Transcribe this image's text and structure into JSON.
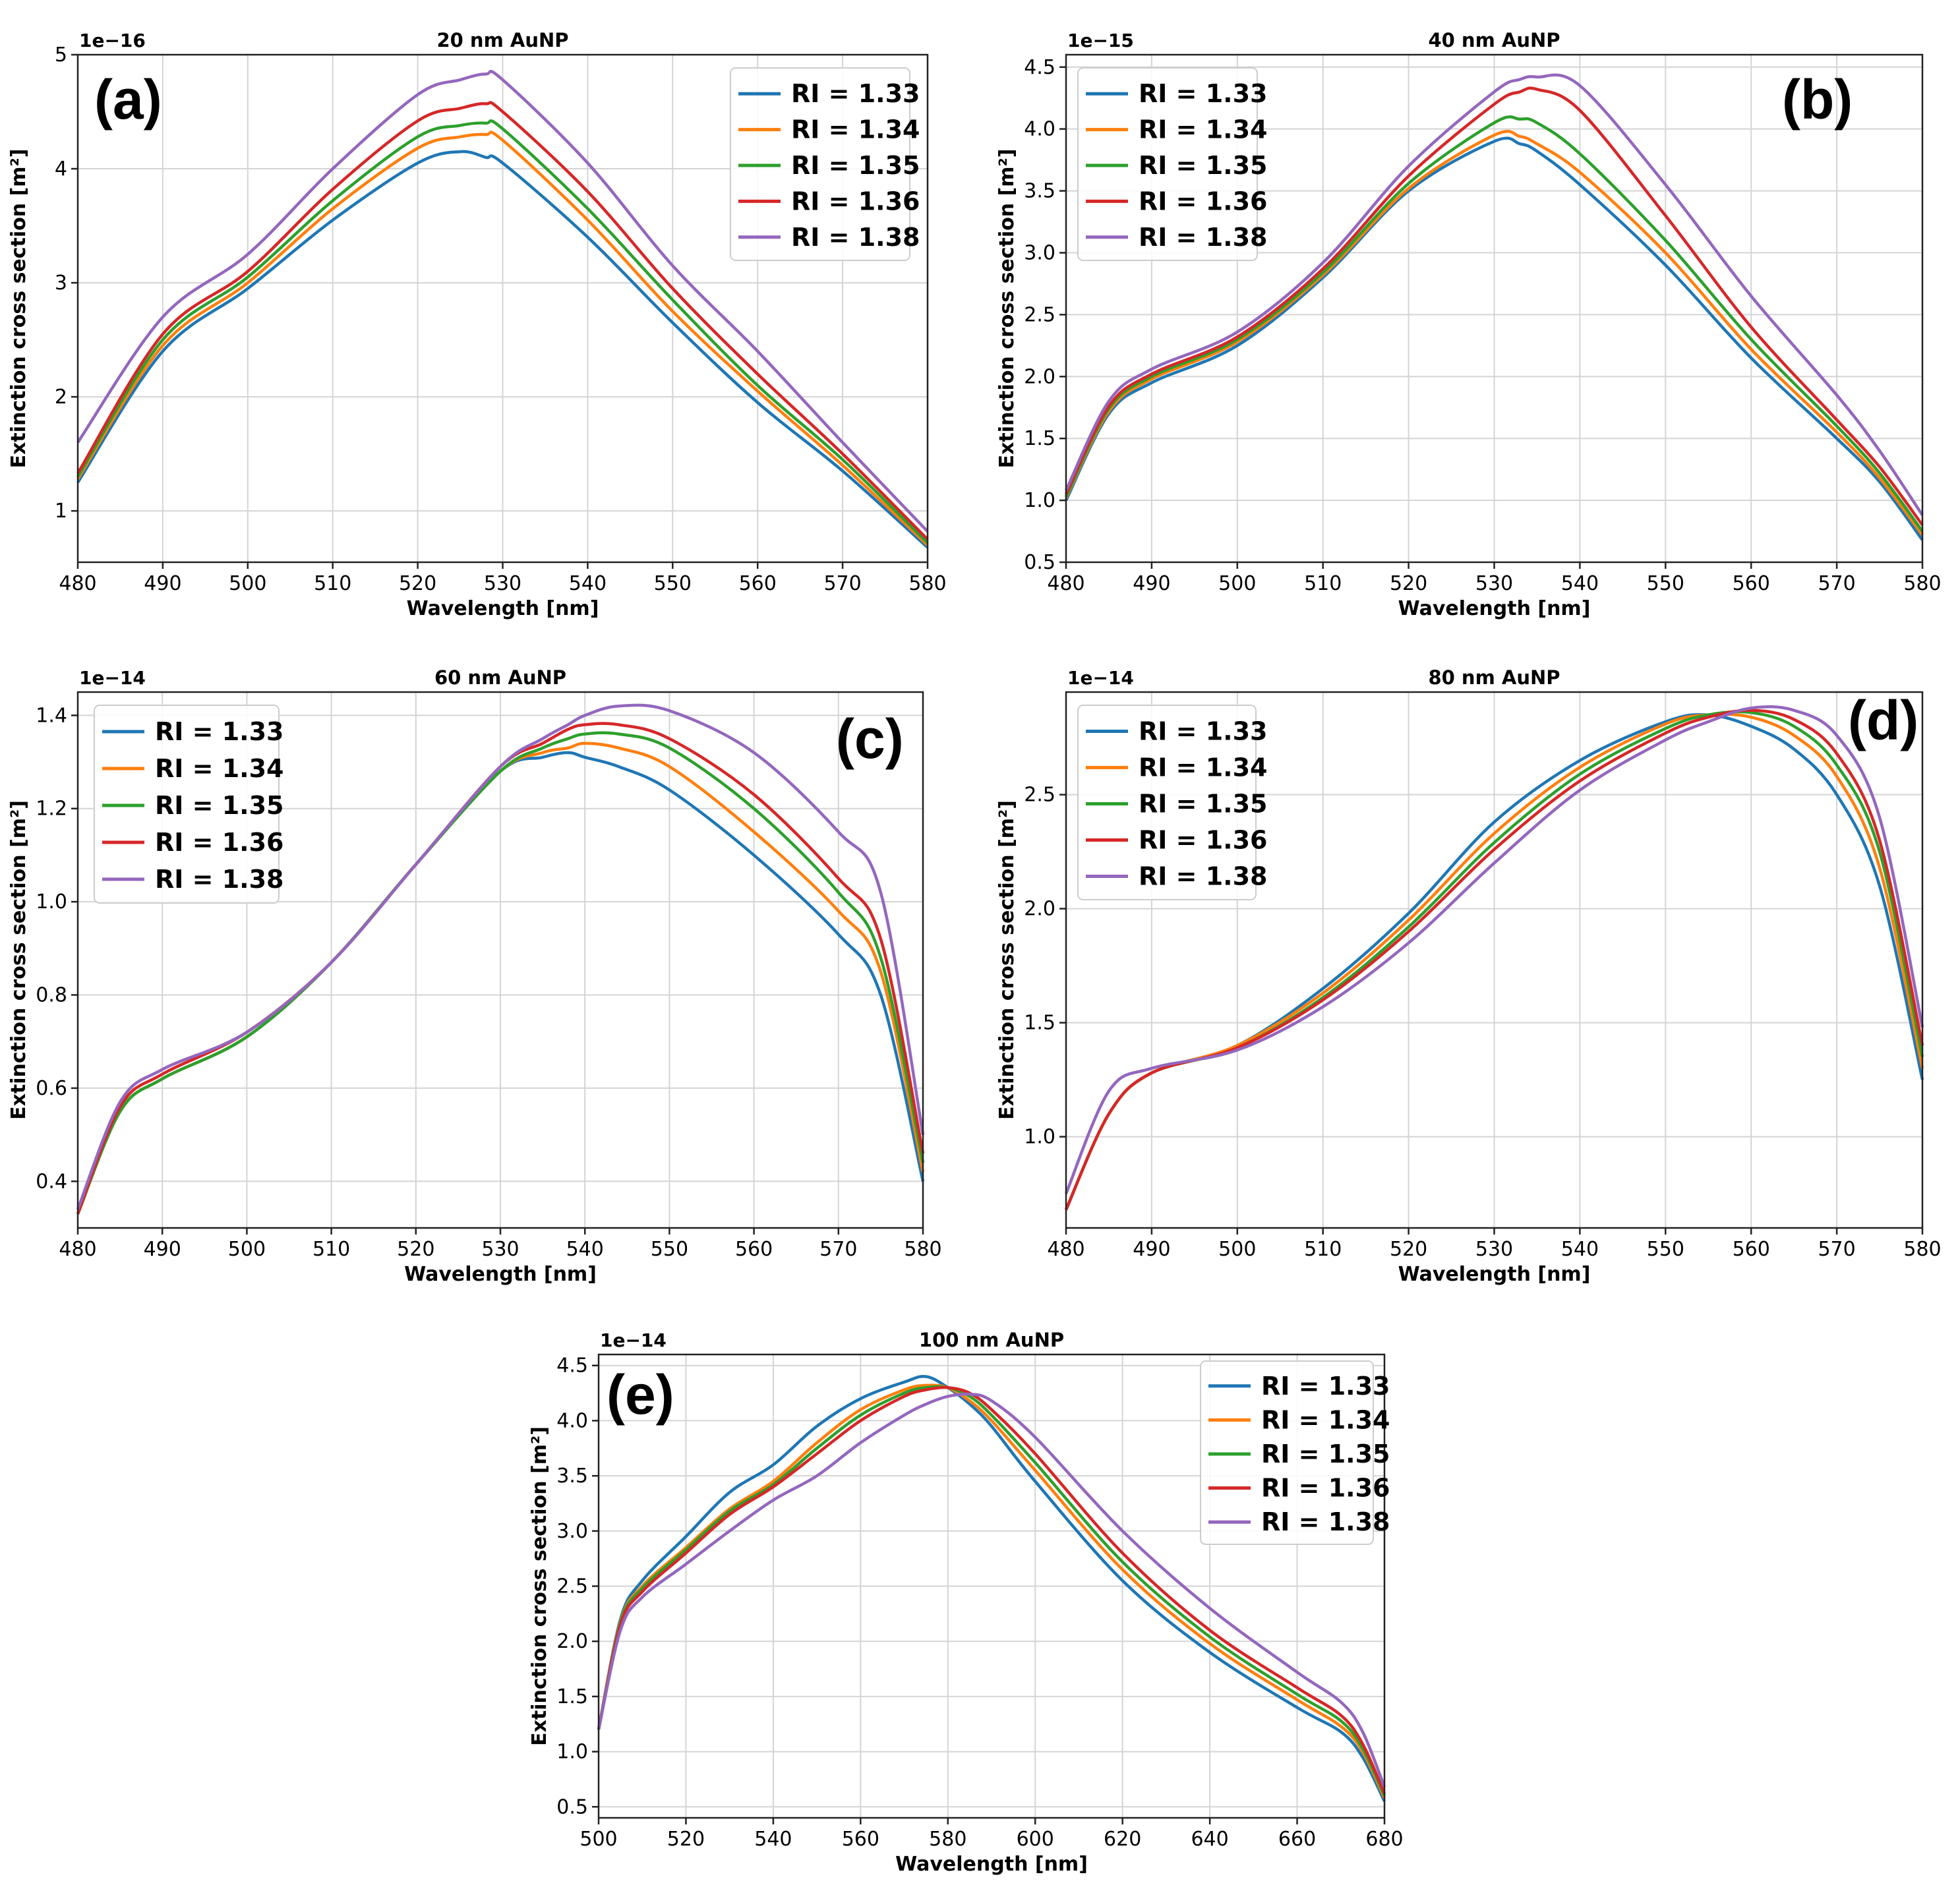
{
  "figure": {
    "legend_prefix": "RI = ",
    "series_colors": {
      "1.33": "#1f77b4",
      "1.34": "#ff7f0e",
      "1.35": "#2ca02c",
      "1.36": "#d62728",
      "1.38": "#9467bd"
    }
  },
  "chart_data": [
    {
      "type": "line",
      "panel_label": "(a)",
      "title": "20 nm AuNP",
      "xlabel": "Wavelength [nm]",
      "ylabel": "Extinction cross section [m²]",
      "offset_text": "1e−16",
      "xlim": [
        480,
        580
      ],
      "ylim": [
        0.55,
        5.0
      ],
      "xticks": [
        480,
        490,
        500,
        510,
        520,
        530,
        540,
        550,
        560,
        570,
        580
      ],
      "yticks": [
        1,
        2,
        3,
        4,
        5
      ],
      "ytick_labels": [
        "1",
        "2",
        "3",
        "4",
        "5"
      ],
      "legend_position": "top-right",
      "x": [
        480,
        490,
        500,
        510,
        520,
        525,
        528,
        530,
        540,
        550,
        560,
        570,
        580
      ],
      "series": [
        {
          "name": "RI = 1.33",
          "ri": "1.33",
          "values": [
            1.25,
            2.4,
            2.95,
            3.55,
            4.05,
            4.15,
            4.1,
            4.05,
            3.4,
            2.65,
            1.95,
            1.35,
            0.68
          ]
        },
        {
          "name": "RI = 1.34",
          "ri": "1.34",
          "values": [
            1.28,
            2.45,
            3.0,
            3.65,
            4.18,
            4.28,
            4.3,
            4.25,
            3.55,
            2.75,
            2.05,
            1.4,
            0.7
          ]
        },
        {
          "name": "RI = 1.35",
          "ri": "1.35",
          "values": [
            1.3,
            2.5,
            3.05,
            3.72,
            4.28,
            4.38,
            4.4,
            4.35,
            3.65,
            2.85,
            2.1,
            1.45,
            0.72
          ]
        },
        {
          "name": "RI = 1.36",
          "ri": "1.36",
          "values": [
            1.33,
            2.55,
            3.1,
            3.82,
            4.42,
            4.53,
            4.57,
            4.5,
            3.8,
            2.95,
            2.2,
            1.5,
            0.75
          ]
        },
        {
          "name": "RI = 1.38",
          "ri": "1.38",
          "values": [
            1.6,
            2.7,
            3.25,
            4.0,
            4.65,
            4.78,
            4.83,
            4.78,
            4.05,
            3.15,
            2.4,
            1.6,
            0.82
          ]
        }
      ]
    },
    {
      "type": "line",
      "panel_label": "(b)",
      "title": "40 nm AuNP",
      "xlabel": "Wavelength [nm]",
      "ylabel": "Extinction cross section [m²]",
      "offset_text": "1e−15",
      "xlim": [
        480,
        580
      ],
      "ylim": [
        0.5,
        4.6
      ],
      "xticks": [
        480,
        490,
        500,
        510,
        520,
        530,
        540,
        550,
        560,
        570,
        580
      ],
      "yticks": [
        0.5,
        1.0,
        1.5,
        2.0,
        2.5,
        3.0,
        3.5,
        4.0,
        4.5
      ],
      "ytick_labels": [
        "0.5",
        "1.0",
        "1.5",
        "2.0",
        "2.5",
        "3.0",
        "3.5",
        "4.0",
        "4.5"
      ],
      "legend_position": "top-left",
      "x": [
        480,
        485,
        490,
        500,
        510,
        520,
        530,
        533,
        535,
        540,
        550,
        560,
        570,
        575,
        580
      ],
      "series": [
        {
          "name": "RI = 1.33",
          "ri": "1.33",
          "values": [
            1.0,
            1.7,
            1.95,
            2.25,
            2.8,
            3.5,
            3.9,
            3.88,
            3.82,
            3.55,
            2.9,
            2.15,
            1.5,
            1.15,
            0.68
          ]
        },
        {
          "name": "RI = 1.34",
          "ri": "1.34",
          "values": [
            1.02,
            1.72,
            1.98,
            2.28,
            2.82,
            3.52,
            3.95,
            3.94,
            3.88,
            3.65,
            3.0,
            2.22,
            1.55,
            1.18,
            0.72
          ]
        },
        {
          "name": "RI = 1.35",
          "ri": "1.35",
          "values": [
            1.03,
            1.74,
            2.0,
            2.3,
            2.84,
            3.56,
            4.05,
            4.08,
            4.05,
            3.8,
            3.1,
            2.3,
            1.6,
            1.22,
            0.75
          ]
        },
        {
          "name": "RI = 1.36",
          "ri": "1.36",
          "values": [
            1.05,
            1.76,
            2.02,
            2.32,
            2.87,
            3.62,
            4.2,
            4.3,
            4.32,
            4.15,
            3.3,
            2.4,
            1.65,
            1.27,
            0.8
          ]
        },
        {
          "name": "RI = 1.38",
          "ri": "1.38",
          "values": [
            1.08,
            1.8,
            2.06,
            2.36,
            2.92,
            3.7,
            4.3,
            4.4,
            4.42,
            4.35,
            3.55,
            2.65,
            1.85,
            1.4,
            0.88
          ]
        }
      ]
    },
    {
      "type": "line",
      "panel_label": "(c)",
      "title": "60 nm AuNP",
      "xlabel": "Wavelength [nm]",
      "ylabel": "Extinction cross section [m²]",
      "offset_text": "1e−14",
      "xlim": [
        480,
        580
      ],
      "ylim": [
        0.3,
        1.45
      ],
      "xticks": [
        480,
        490,
        500,
        510,
        520,
        530,
        540,
        550,
        560,
        570,
        580
      ],
      "yticks": [
        0.4,
        0.6,
        0.8,
        1.0,
        1.2,
        1.4
      ],
      "ytick_labels": [
        "0.4",
        "0.6",
        "0.8",
        "1.0",
        "1.2",
        "1.4"
      ],
      "legend_position": "top-left",
      "x": [
        480,
        485,
        490,
        500,
        510,
        520,
        530,
        535,
        538,
        540,
        544,
        550,
        560,
        570,
        575,
        580
      ],
      "series": [
        {
          "name": "RI = 1.33",
          "ri": "1.33",
          "values": [
            0.33,
            0.55,
            0.62,
            0.71,
            0.87,
            1.08,
            1.28,
            1.31,
            1.32,
            1.31,
            1.29,
            1.24,
            1.1,
            0.93,
            0.8,
            0.4
          ]
        },
        {
          "name": "RI = 1.34",
          "ri": "1.34",
          "values": [
            0.33,
            0.55,
            0.62,
            0.71,
            0.87,
            1.08,
            1.28,
            1.32,
            1.33,
            1.34,
            1.33,
            1.29,
            1.15,
            0.98,
            0.85,
            0.42
          ]
        },
        {
          "name": "RI = 1.35",
          "ri": "1.35",
          "values": [
            0.33,
            0.55,
            0.62,
            0.71,
            0.87,
            1.08,
            1.28,
            1.33,
            1.35,
            1.36,
            1.36,
            1.33,
            1.2,
            1.02,
            0.88,
            0.44
          ]
        },
        {
          "name": "RI = 1.36",
          "ri": "1.36",
          "values": [
            0.33,
            0.56,
            0.63,
            0.72,
            0.87,
            1.08,
            1.29,
            1.34,
            1.37,
            1.38,
            1.38,
            1.35,
            1.23,
            1.05,
            0.92,
            0.46
          ]
        },
        {
          "name": "RI = 1.38",
          "ri": "1.38",
          "values": [
            0.34,
            0.57,
            0.64,
            0.72,
            0.87,
            1.08,
            1.29,
            1.35,
            1.38,
            1.4,
            1.42,
            1.41,
            1.32,
            1.15,
            1.02,
            0.5
          ]
        }
      ]
    },
    {
      "type": "line",
      "panel_label": "(d)",
      "title": "80 nm AuNP",
      "xlabel": "Wavelength [nm]",
      "ylabel": "Extinction cross section [m²]",
      "offset_text": "1e−14",
      "xlim": [
        480,
        580
      ],
      "ylim": [
        0.6,
        2.95
      ],
      "xticks": [
        480,
        490,
        500,
        510,
        520,
        530,
        540,
        550,
        560,
        570,
        580
      ],
      "yticks": [
        1.0,
        1.5,
        2.0,
        2.5
      ],
      "ytick_labels": [
        "1.0",
        "1.5",
        "2.0",
        "2.5"
      ],
      "legend_position": "top-left",
      "x": [
        480,
        485,
        490,
        500,
        510,
        520,
        530,
        540,
        550,
        555,
        560,
        565,
        570,
        575,
        580
      ],
      "series": [
        {
          "name": "RI = 1.33",
          "ri": "1.33",
          "values": [
            0.68,
            1.1,
            1.28,
            1.4,
            1.65,
            1.98,
            2.38,
            2.65,
            2.82,
            2.85,
            2.8,
            2.7,
            2.5,
            2.1,
            1.25
          ]
        },
        {
          "name": "RI = 1.34",
          "ri": "1.34",
          "values": [
            0.68,
            1.1,
            1.28,
            1.4,
            1.63,
            1.95,
            2.33,
            2.62,
            2.81,
            2.85,
            2.84,
            2.76,
            2.58,
            2.18,
            1.3
          ]
        },
        {
          "name": "RI = 1.35",
          "ri": "1.35",
          "values": [
            0.68,
            1.1,
            1.28,
            1.39,
            1.61,
            1.92,
            2.29,
            2.59,
            2.79,
            2.85,
            2.86,
            2.8,
            2.63,
            2.25,
            1.35
          ]
        },
        {
          "name": "RI = 1.36",
          "ri": "1.36",
          "values": [
            0.68,
            1.1,
            1.28,
            1.39,
            1.6,
            1.9,
            2.26,
            2.56,
            2.77,
            2.84,
            2.87,
            2.83,
            2.68,
            2.3,
            1.4
          ]
        },
        {
          "name": "RI = 1.38",
          "ri": "1.38",
          "values": [
            0.75,
            1.2,
            1.3,
            1.38,
            1.57,
            1.85,
            2.2,
            2.52,
            2.74,
            2.82,
            2.88,
            2.87,
            2.76,
            2.4,
            1.48
          ]
        }
      ]
    },
    {
      "type": "line",
      "panel_label": "(e)",
      "title": "100 nm AuNP",
      "xlabel": "Wavelength [nm]",
      "ylabel": "Extinction cross section [m²]",
      "offset_text": "1e−14",
      "xlim": [
        500,
        680
      ],
      "ylim": [
        0.4,
        4.6
      ],
      "xticks": [
        500,
        520,
        540,
        560,
        580,
        600,
        620,
        640,
        660,
        680
      ],
      "yticks": [
        0.5,
        1.0,
        1.5,
        2.0,
        2.5,
        3.0,
        3.5,
        4.0,
        4.5
      ],
      "ytick_labels": [
        "0.5",
        "1.0",
        "1.5",
        "2.0",
        "2.5",
        "3.0",
        "3.5",
        "4.0",
        "4.5"
      ],
      "legend_position": "top-right",
      "x": [
        500,
        505,
        510,
        520,
        530,
        540,
        550,
        560,
        570,
        575,
        580,
        585,
        590,
        600,
        620,
        640,
        660,
        670,
        675,
        680
      ],
      "series": [
        {
          "name": "RI = 1.33",
          "ri": "1.33",
          "values": [
            1.2,
            2.2,
            2.55,
            2.95,
            3.35,
            3.6,
            3.95,
            4.2,
            4.35,
            4.4,
            4.3,
            4.15,
            3.95,
            3.45,
            2.55,
            1.9,
            1.4,
            1.18,
            0.95,
            0.55
          ]
        },
        {
          "name": "RI = 1.34",
          "ri": "1.34",
          "values": [
            1.2,
            2.18,
            2.5,
            2.85,
            3.2,
            3.45,
            3.8,
            4.1,
            4.28,
            4.32,
            4.3,
            4.18,
            4.0,
            3.55,
            2.65,
            1.98,
            1.47,
            1.23,
            1.0,
            0.58
          ]
        },
        {
          "name": "RI = 1.35",
          "ri": "1.35",
          "values": [
            1.2,
            2.17,
            2.48,
            2.83,
            3.18,
            3.42,
            3.75,
            4.05,
            4.25,
            4.3,
            4.3,
            4.22,
            4.05,
            3.62,
            2.72,
            2.04,
            1.52,
            1.28,
            1.03,
            0.6
          ]
        },
        {
          "name": "RI = 1.36",
          "ri": "1.36",
          "values": [
            1.2,
            2.15,
            2.45,
            2.8,
            3.15,
            3.4,
            3.7,
            4.0,
            4.22,
            4.28,
            4.3,
            4.25,
            4.1,
            3.7,
            2.8,
            2.1,
            1.58,
            1.33,
            1.07,
            0.62
          ]
        },
        {
          "name": "RI = 1.38",
          "ri": "1.38",
          "values": [
            1.2,
            2.1,
            2.4,
            2.7,
            3.0,
            3.28,
            3.5,
            3.8,
            4.05,
            4.15,
            4.22,
            4.24,
            4.18,
            3.85,
            3.0,
            2.3,
            1.72,
            1.45,
            1.18,
            0.68
          ]
        }
      ]
    }
  ]
}
